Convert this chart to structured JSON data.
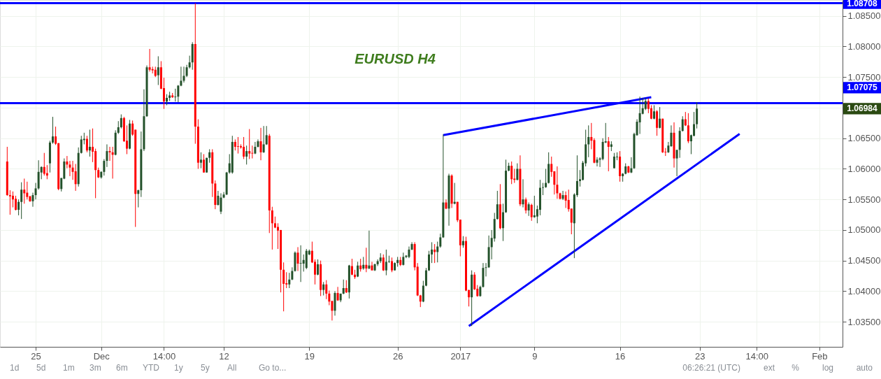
{
  "chart_data": {
    "type": "candlestick",
    "title": "EURUSD H4",
    "categories": [
      null,
      null,
      null,
      null,
      null,
      null,
      null,
      null,
      null,
      null,
      null,
      "25",
      null,
      null,
      null,
      null,
      null,
      null,
      null,
      null,
      null,
      null,
      null,
      null,
      null,
      null,
      null,
      null,
      null,
      null,
      null,
      null,
      null,
      null,
      "Dec",
      null,
      null,
      null,
      null,
      null,
      null,
      null,
      null,
      null,
      null,
      null,
      null,
      null,
      null,
      null,
      null,
      null,
      null,
      null,
      null,
      null,
      "14:00",
      null,
      null,
      null,
      null,
      null,
      null,
      null,
      null,
      null,
      null,
      null,
      null,
      null,
      null,
      null,
      null,
      null,
      null,
      null,
      null,
      "12",
      null,
      null,
      null,
      null,
      null,
      null,
      null,
      null,
      null,
      null,
      null,
      null,
      null,
      null,
      null,
      null,
      null,
      null,
      null,
      null,
      null,
      null,
      null,
      null,
      null,
      null,
      null,
      null,
      null,
      "19",
      null,
      null,
      null,
      null,
      null,
      null,
      null,
      null,
      null,
      null,
      null,
      null,
      null,
      null,
      null,
      null,
      null,
      null,
      null,
      null,
      null,
      null,
      null,
      null,
      null,
      null,
      null,
      null,
      null,
      null,
      "26",
      null,
      null,
      null,
      null,
      null,
      null,
      null,
      null,
      null,
      null,
      null,
      null,
      null,
      null,
      null,
      null,
      null,
      null,
      null,
      null,
      null,
      "2017",
      null,
      null,
      null,
      null,
      null,
      null,
      null,
      null,
      null,
      null,
      null,
      null,
      null,
      null,
      null,
      null,
      null,
      null,
      null,
      null,
      null,
      null,
      null,
      null,
      null,
      "9",
      null,
      null,
      null,
      null,
      null,
      null,
      null,
      null,
      null,
      null,
      null,
      null,
      null,
      null,
      null,
      null,
      null,
      null,
      null,
      null,
      null,
      null,
      null,
      null,
      null,
      null,
      null,
      null,
      null,
      "16",
      null,
      null,
      null,
      null,
      null,
      null,
      null,
      null,
      null,
      null,
      null,
      null,
      null,
      null,
      null,
      null,
      null,
      null,
      null,
      null,
      null,
      null,
      null,
      null,
      null,
      null,
      null,
      "23",
      null,
      null,
      null,
      null,
      null,
      null,
      null,
      null,
      null,
      null,
      null,
      null,
      null,
      null,
      null,
      null,
      null,
      null,
      null,
      "14:00",
      null,
      null,
      null,
      null,
      null,
      null,
      null,
      null,
      null,
      null,
      null,
      null,
      null,
      null,
      null,
      null,
      null,
      null,
      null,
      null,
      null,
      "Feb",
      null,
      null,
      null,
      null,
      null,
      null
    ],
    "ylim": [
      1.0309,
      1.0876
    ],
    "yticks": [
      {
        "value": 1.035,
        "label": "1.03500"
      },
      {
        "value": 1.04,
        "label": "1.04000"
      },
      {
        "value": 1.045,
        "label": "1.04500"
      },
      {
        "value": 1.05,
        "label": "1.05000"
      },
      {
        "value": 1.055,
        "label": "1.05500"
      },
      {
        "value": 1.06,
        "label": "1.06000"
      },
      {
        "value": 1.065,
        "label": "1.06500"
      },
      {
        "value": 1.07,
        "label": null
      },
      {
        "value": 1.075,
        "label": "1.07500"
      },
      {
        "value": 1.08,
        "label": "1.08000"
      },
      {
        "value": 1.085,
        "label": "1.08500"
      }
    ],
    "grid": true,
    "ref_lines": [
      {
        "axis": "y",
        "value": 1.08708,
        "label": "1.08708",
        "color": "#0000ff"
      },
      {
        "axis": "y",
        "value": 1.07075,
        "label": "1.07075",
        "color": "#0000ff"
      }
    ],
    "annotations": [
      "1.06984",
      "1d",
      "5d",
      "1m",
      "3m",
      "6m",
      "YTD",
      "1y",
      "5y",
      "All",
      "Go to...",
      "06:26:21 (UTC)",
      "ext",
      "%",
      "log",
      "auto"
    ],
    "series": [
      {
        "type": "line",
        "color": "#0000ff",
        "values": [
          null,
          null,
          null,
          null,
          null,
          null,
          null,
          null,
          null,
          null,
          null,
          null,
          null,
          null,
          null,
          null,
          null,
          null,
          null,
          null,
          null,
          null,
          null,
          null,
          null,
          null,
          null,
          null,
          null,
          null,
          null,
          null,
          null,
          null,
          null,
          null,
          null,
          null,
          null,
          null,
          null,
          null,
          null,
          null,
          null,
          null,
          null,
          null,
          null,
          null,
          null,
          null,
          null,
          null,
          null,
          null,
          null,
          null,
          null,
          null,
          null,
          null,
          null,
          null,
          null,
          null,
          null,
          null,
          null,
          null,
          null,
          null,
          null,
          null,
          null,
          null,
          null,
          null,
          null,
          null,
          null,
          null,
          null,
          null,
          null,
          null,
          null,
          null,
          null,
          null,
          null,
          null,
          null,
          null,
          null,
          null,
          null,
          null,
          null,
          null,
          null,
          null,
          null,
          null,
          null,
          null,
          null,
          null,
          null,
          null,
          null,
          null,
          null,
          null,
          null,
          null,
          null,
          null,
          null,
          null,
          null,
          null,
          null,
          null,
          null,
          null,
          null,
          null,
          null,
          null,
          null,
          null,
          null,
          null,
          null,
          null,
          null,
          null,
          null,
          null,
          null,
          null,
          null,
          null,
          null,
          null,
          null,
          null,
          null,
          null,
          null,
          null,
          null,
          null,
          1.0655,
          null,
          null,
          null,
          null,
          null,
          null,
          null,
          null,
          null,
          null,
          null,
          null,
          null,
          null,
          null,
          null,
          null,
          null,
          null,
          null,
          null,
          null,
          null,
          null,
          null,
          null,
          null,
          null,
          null,
          null,
          null,
          null,
          null,
          null,
          null,
          null,
          null,
          null,
          null,
          null,
          null,
          null,
          null,
          null,
          null,
          null,
          null,
          null,
          null,
          null,
          null,
          null,
          null,
          null,
          null,
          null,
          null,
          null,
          null,
          null,
          null,
          null,
          null,
          null,
          null,
          null,
          null,
          null,
          null,
          null,
          null,
          null,
          1.0717,
          null,
          null,
          null,
          null,
          null,
          null,
          null,
          null,
          null,
          null,
          null,
          null,
          null,
          null,
          null,
          null,
          null,
          null,
          null,
          null,
          null,
          null,
          null,
          null,
          null,
          null,
          null,
          null,
          null,
          null,
          null,
          null,
          null,
          null,
          null,
          null,
          null,
          null,
          null,
          null,
          null,
          null,
          null,
          null,
          null,
          null,
          null,
          null,
          null,
          null,
          null,
          null,
          null,
          null,
          null,
          null,
          null,
          null,
          null,
          null,
          null,
          null,
          null,
          null,
          null
        ]
      },
      {
        "type": "line",
        "color": "#0000ff",
        "values": [
          null,
          null,
          null,
          null,
          null,
          null,
          null,
          null,
          null,
          null,
          null,
          null,
          null,
          null,
          null,
          null,
          null,
          null,
          null,
          null,
          null,
          null,
          null,
          null,
          null,
          null,
          null,
          null,
          null,
          null,
          null,
          null,
          null,
          null,
          null,
          null,
          null,
          null,
          null,
          null,
          null,
          null,
          null,
          null,
          null,
          null,
          null,
          null,
          null,
          null,
          null,
          null,
          null,
          null,
          null,
          null,
          null,
          null,
          null,
          null,
          null,
          null,
          null,
          null,
          null,
          null,
          null,
          null,
          null,
          null,
          null,
          null,
          null,
          null,
          null,
          null,
          null,
          null,
          null,
          null,
          null,
          null,
          null,
          null,
          null,
          null,
          null,
          null,
          null,
          null,
          null,
          null,
          null,
          null,
          null,
          null,
          null,
          null,
          null,
          null,
          null,
          null,
          null,
          null,
          null,
          null,
          null,
          null,
          null,
          null,
          null,
          null,
          null,
          null,
          null,
          null,
          null,
          null,
          null,
          null,
          null,
          null,
          null,
          null,
          null,
          null,
          null,
          null,
          null,
          null,
          null,
          null,
          null,
          null,
          null,
          null,
          null,
          null,
          null,
          null,
          null,
          null,
          null,
          null,
          null,
          null,
          null,
          null,
          null,
          null,
          null,
          null,
          null,
          null,
          null,
          null,
          null,
          null,
          null,
          null,
          null,
          null,
          null,
          1.0343,
          null,
          null,
          null,
          null,
          null,
          null,
          null,
          null,
          null,
          null,
          null,
          null,
          null,
          null,
          null,
          null,
          null,
          null,
          null,
          null,
          null,
          null,
          null,
          null,
          null,
          null,
          null,
          null,
          null,
          null,
          null,
          null,
          null,
          null,
          null,
          null,
          null,
          null,
          null,
          null,
          null,
          null,
          null,
          null,
          null,
          null,
          null,
          null,
          null,
          null,
          null,
          null,
          null,
          null,
          null,
          null,
          null,
          null,
          null,
          null,
          null,
          null,
          null,
          null,
          null,
          null,
          null,
          null,
          null,
          null,
          null,
          null,
          null,
          null,
          null,
          null,
          null,
          null,
          null,
          null,
          null,
          null,
          null,
          null,
          null,
          null,
          null,
          null,
          null,
          null,
          null,
          null,
          null,
          null,
          1.0657,
          null,
          null,
          null,
          null,
          null,
          null,
          null,
          null,
          null,
          null,
          null,
          null,
          null,
          null,
          null,
          null,
          null,
          null,
          null,
          null,
          null,
          null,
          null,
          null,
          null,
          null,
          null,
          null,
          null,
          null,
          null,
          null,
          null,
          null
        ]
      }
    ],
    "ohlc": [
      null,
      [
        1.0612,
        1.0636,
        1.0556,
        1.0557
      ],
      [
        1.0557,
        1.0565,
        1.0525,
        1.0555
      ],
      [
        1.0556,
        1.0563,
        1.0537,
        1.055
      ],
      [
        1.0551,
        1.0556,
        1.0532,
        1.0533
      ],
      [
        1.0533,
        1.055,
        1.0524,
        1.0546
      ],
      [
        1.0546,
        1.0578,
        1.0518,
        1.0566
      ],
      [
        1.0566,
        1.0584,
        1.0543,
        1.056
      ],
      [
        1.0561,
        1.0579,
        1.055,
        1.0554
      ],
      [
        1.0555,
        1.0556,
        1.0546,
        1.0547
      ],
      [
        1.0547,
        1.0561,
        1.0538,
        1.0557
      ],
      [
        1.0557,
        1.0577,
        1.055,
        1.0568
      ],
      [
        1.0568,
        1.0614,
        1.0566,
        1.0595
      ],
      [
        1.0594,
        1.0604,
        1.0583,
        1.0603
      ],
      [
        1.0603,
        1.0626,
        1.0589,
        1.0592
      ],
      [
        1.0593,
        1.0606,
        1.0583,
        1.0589
      ],
      [
        1.0609,
        1.0646,
        1.0594,
        1.0643
      ],
      [
        1.0643,
        1.0685,
        1.0641,
        1.0653
      ],
      [
        1.0653,
        1.0669,
        1.0639,
        1.0641
      ],
      [
        1.0642,
        1.0642,
        1.0565,
        1.0567
      ],
      [
        1.0567,
        1.0585,
        1.0563,
        1.0585
      ],
      [
        1.0584,
        1.0617,
        1.0583,
        1.0612
      ],
      [
        1.0612,
        1.0621,
        1.0601,
        1.0607
      ],
      [
        1.0607,
        1.0613,
        1.0588,
        1.0602
      ],
      [
        1.0602,
        1.0613,
        1.0582,
        1.0595
      ],
      [
        1.0596,
        1.0608,
        1.0564,
        1.0575
      ],
      [
        1.0575,
        1.0635,
        1.0571,
        1.0626
      ],
      [
        1.0626,
        1.0654,
        1.0625,
        1.0648
      ],
      [
        1.0647,
        1.0659,
        1.064,
        1.0649
      ],
      [
        1.0649,
        1.0654,
        1.0627,
        1.063
      ],
      [
        1.063,
        1.0664,
        1.062,
        1.0636
      ],
      [
        1.0636,
        1.0666,
        1.0611,
        1.0628
      ],
      [
        1.0629,
        1.0633,
        1.0552,
        1.0598
      ],
      [
        1.0598,
        1.0602,
        1.0585,
        1.0586
      ],
      [
        1.0586,
        1.0596,
        1.0584,
        1.0595
      ],
      [
        1.0595,
        1.0616,
        1.0589,
        1.0613
      ],
      [
        1.0613,
        1.064,
        1.0603,
        1.0629
      ],
      [
        1.0629,
        1.0636,
        1.0613,
        1.0627
      ],
      [
        1.0627,
        1.0636,
        1.0584,
        1.0623
      ],
      [
        1.0623,
        1.0663,
        1.0622,
        1.0659
      ],
      [
        1.0659,
        1.0678,
        1.0657,
        1.0668
      ],
      [
        1.0668,
        1.0689,
        1.0666,
        1.0683
      ],
      [
        1.0683,
        1.0685,
        1.0644,
        1.0645
      ],
      [
        1.0646,
        1.0671,
        1.0624,
        1.0633
      ],
      [
        1.0633,
        1.068,
        1.0632,
        1.0674
      ],
      [
        1.0674,
        1.0679,
        1.0654,
        1.0656
      ],
      [
        1.0664,
        1.0664,
        1.0505,
        1.0559
      ],
      [
        1.0559,
        1.0566,
        1.0537,
        1.0565
      ],
      [
        1.0565,
        1.0661,
        1.0554,
        1.0632
      ],
      [
        1.0632,
        1.073,
        1.0629,
        1.0686
      ],
      [
        1.0686,
        1.0769,
        1.0685,
        1.0766
      ],
      [
        1.0766,
        1.0796,
        1.0759,
        1.0762
      ],
      [
        1.0763,
        1.0767,
        1.0756,
        1.0761
      ],
      [
        1.0762,
        1.0767,
        1.075,
        1.0752
      ],
      [
        1.0753,
        1.0784,
        1.0737,
        1.0766
      ],
      [
        1.0766,
        1.0776,
        1.073,
        1.0731
      ],
      [
        1.0732,
        1.0749,
        1.0698,
        1.071
      ],
      [
        1.071,
        1.0722,
        1.0704,
        1.0716
      ],
      [
        1.0716,
        1.0726,
        1.0711,
        1.072
      ],
      [
        1.072,
        1.0724,
        1.0716,
        1.0717
      ],
      [
        1.0717,
        1.0731,
        1.071,
        1.0718
      ],
      [
        1.0718,
        1.0737,
        1.0709,
        1.0736
      ],
      [
        1.0736,
        1.0767,
        1.0735,
        1.0744
      ],
      [
        1.0744,
        1.0767,
        1.0741,
        1.0752
      ],
      [
        1.0752,
        1.077,
        1.075,
        1.0766
      ],
      [
        1.0766,
        1.0785,
        1.0764,
        1.0774
      ],
      [
        1.0774,
        1.0807,
        1.0762,
        1.0804
      ],
      [
        1.0804,
        1.08708,
        1.0641,
        1.0669
      ],
      [
        1.0669,
        1.0681,
        1.06,
        1.061
      ],
      [
        1.061,
        1.0627,
        1.0601,
        1.0615
      ],
      [
        1.0615,
        1.0624,
        1.0594,
        1.0594
      ],
      [
        1.0594,
        1.0618,
        1.0594,
        1.0618
      ],
      [
        1.0618,
        1.0632,
        1.061,
        1.0627
      ],
      [
        1.0627,
        1.0632,
        1.0554,
        1.0576
      ],
      [
        1.0576,
        1.0581,
        1.0534,
        1.0541
      ],
      [
        1.0541,
        1.0564,
        1.054,
        1.0556
      ],
      [
        1.053,
        1.056,
        1.0526,
        1.0553
      ],
      [
        1.0553,
        1.0562,
        1.0552,
        1.0558
      ],
      [
        1.0558,
        1.0595,
        1.0557,
        1.0594
      ],
      [
        1.0594,
        1.0624,
        1.0592,
        1.0609
      ],
      [
        1.0594,
        1.0654,
        1.0592,
        1.0644
      ],
      [
        1.0644,
        1.0648,
        1.063,
        1.0636
      ],
      [
        1.0637,
        1.0652,
        1.0625,
        1.0636
      ],
      [
        1.0637,
        1.064,
        1.0633,
        1.0635
      ],
      [
        1.0636,
        1.0652,
        1.0616,
        1.062
      ],
      [
        1.062,
        1.0638,
        1.0607,
        1.0629
      ],
      [
        1.0629,
        1.0665,
        1.0616,
        1.0625
      ],
      [
        1.0626,
        1.0638,
        1.0617,
        1.0625
      ],
      [
        1.0625,
        1.0644,
        1.0624,
        1.0636
      ],
      [
        1.0636,
        1.0648,
        1.0635,
        1.0645
      ],
      [
        1.0645,
        1.0667,
        1.0614,
        1.0627
      ],
      [
        1.0627,
        1.067,
        1.0626,
        1.064
      ],
      [
        1.064,
        1.067,
        1.0639,
        1.0655
      ],
      [
        1.0654,
        1.0657,
        1.0495,
        1.0532
      ],
      [
        1.0532,
        1.0538,
        1.0468,
        1.0511
      ],
      [
        1.0511,
        1.0522,
        1.0503,
        1.0504
      ],
      [
        1.0505,
        1.0511,
        1.0469,
        1.0499
      ],
      [
        1.05,
        1.05,
        1.0398,
        1.0435
      ],
      [
        1.0435,
        1.0447,
        1.0367,
        1.0412
      ],
      [
        1.0413,
        1.0431,
        1.0405,
        1.0411
      ],
      [
        1.0411,
        1.043,
        1.0405,
        1.0419
      ],
      [
        1.0419,
        1.0439,
        1.0418,
        1.0433
      ],
      [
        1.0433,
        1.0465,
        1.0432,
        1.0463
      ],
      [
        1.0463,
        1.0472,
        1.0433,
        1.0445
      ],
      [
        1.0445,
        1.0475,
        1.0415,
        1.0446
      ],
      [
        1.0445,
        1.046,
        1.0432,
        1.0451
      ],
      [
        1.0438,
        1.0469,
        1.0436,
        1.0466
      ],
      [
        1.046,
        1.0468,
        1.0459,
        1.0466
      ],
      [
        1.0466,
        1.0481,
        1.0446,
        1.0447
      ],
      [
        1.0448,
        1.0452,
        1.0411,
        1.0427
      ],
      [
        1.0427,
        1.0452,
        1.0426,
        1.0444
      ],
      [
        1.0444,
        1.045,
        1.0392,
        1.0402
      ],
      [
        1.0402,
        1.0415,
        1.0393,
        1.0411
      ],
      [
        1.0411,
        1.0418,
        1.0387,
        1.0396
      ],
      [
        1.0396,
        1.0401,
        1.0377,
        1.0383
      ],
      [
        1.0384,
        1.0384,
        1.0352,
        1.0368
      ],
      [
        1.0368,
        1.04,
        1.036,
        1.0397
      ],
      [
        1.0397,
        1.0407,
        1.0384,
        1.0385
      ],
      [
        1.0385,
        1.0396,
        1.0382,
        1.0396
      ],
      [
        1.0396,
        1.0419,
        1.0395,
        1.0405
      ],
      [
        1.0405,
        1.0418,
        1.0397,
        1.0398
      ],
      [
        1.0398,
        1.0443,
        1.0388,
        1.0442
      ],
      [
        1.0441,
        1.0453,
        1.0426,
        1.0427
      ],
      [
        1.0427,
        1.0435,
        1.042,
        1.0423
      ],
      [
        1.0424,
        1.0448,
        1.0423,
        1.0442
      ],
      [
        1.0442,
        1.0453,
        1.0432,
        1.0436
      ],
      [
        1.0437,
        1.0456,
        1.0435,
        1.0443
      ],
      [
        1.0443,
        1.0471,
        1.0431,
        1.0437
      ],
      [
        1.0437,
        1.0499,
        1.0436,
        1.0442
      ],
      [
        1.0442,
        1.0448,
        1.0434,
        1.0434
      ],
      [
        1.0434,
        1.0445,
        1.0433,
        1.0444
      ],
      [
        1.0444,
        1.0452,
        1.0441,
        1.0449
      ],
      [
        1.0449,
        1.0462,
        1.0446,
        1.0455
      ],
      [
        1.0455,
        1.046,
        1.0433,
        1.0434
      ],
      [
        1.0434,
        1.0468,
        1.0426,
        1.0448
      ],
      [
        1.0448,
        1.0458,
        1.0446,
        1.0449
      ],
      [
        1.0449,
        1.0455,
        1.0431,
        1.0434
      ],
      [
        1.0434,
        1.0447,
        1.0434,
        1.0446
      ],
      [
        1.0446,
        1.0456,
        1.044,
        1.0451
      ],
      [
        1.0451,
        1.0456,
        1.0441,
        1.0443
      ],
      [
        1.0443,
        1.0463,
        1.0442,
        1.0456
      ],
      [
        1.0456,
        1.0459,
        1.0454,
        1.0458
      ],
      [
        1.0456,
        1.0473,
        1.0454,
        1.0468
      ],
      [
        1.0468,
        1.048,
        1.0467,
        1.0477
      ],
      [
        1.0477,
        1.048,
        1.0434,
        1.0439
      ],
      [
        1.044,
        1.0446,
        1.0392,
        1.0393
      ],
      [
        1.0393,
        1.0394,
        1.0374,
        1.0383
      ],
      [
        1.0383,
        1.0417,
        1.0382,
        1.0409
      ],
      [
        1.0409,
        1.0438,
        1.0408,
        1.0434
      ],
      [
        1.0434,
        1.0466,
        1.0433,
        1.046
      ],
      [
        1.046,
        1.048,
        1.0446,
        1.0468
      ],
      [
        1.0468,
        1.0477,
        1.0446,
        1.0464
      ],
      [
        1.0464,
        1.0481,
        1.0447,
        1.0473
      ],
      [
        1.0473,
        1.0494,
        1.0471,
        1.0488
      ],
      [
        1.0488,
        1.0656,
        1.0487,
        1.0545
      ],
      [
        1.0545,
        1.055,
        1.0534,
        1.0535
      ],
      [
        1.0535,
        1.0592,
        1.0507,
        1.0589
      ],
      [
        1.0589,
        1.0591,
        1.0536,
        1.0543
      ],
      [
        1.0543,
        1.0577,
        1.0542,
        1.0546
      ],
      [
        1.0546,
        1.0546,
        1.0513,
        1.0516
      ],
      [
        1.0517,
        1.0517,
        1.0457,
        1.0475
      ],
      [
        1.0475,
        1.049,
        1.0471,
        1.0482
      ],
      [
        1.0482,
        1.0489,
        1.04,
        1.0401
      ],
      [
        1.0402,
        1.0402,
        1.0375,
        1.039
      ],
      [
        1.039,
        1.0434,
        1.0343,
        1.0427
      ],
      [
        1.0427,
        1.0431,
        1.0402,
        1.0403
      ],
      [
        1.0404,
        1.041,
        1.0391,
        1.0392
      ],
      [
        1.0392,
        1.0409,
        1.0391,
        1.0407
      ],
      [
        1.0407,
        1.0446,
        1.0406,
        1.0438
      ],
      [
        1.0438,
        1.0446,
        1.0424,
        1.0439
      ],
      [
        1.0439,
        1.0491,
        1.0438,
        1.0472
      ],
      [
        1.0472,
        1.05,
        1.0452,
        1.0487
      ],
      [
        1.0486,
        1.0528,
        1.0481,
        1.0518
      ],
      [
        1.0518,
        1.0564,
        1.0517,
        1.0542
      ],
      [
        1.0542,
        1.0575,
        1.0501,
        1.0503
      ],
      [
        1.0503,
        1.0543,
        1.0482,
        1.0529
      ],
      [
        1.0529,
        1.0615,
        1.0528,
        1.0597
      ],
      [
        1.0597,
        1.061,
        1.0596,
        1.0605
      ],
      [
        1.0605,
        1.0612,
        1.0575,
        1.0583
      ],
      [
        1.0584,
        1.06,
        1.0577,
        1.0582
      ],
      [
        1.0582,
        1.0609,
        1.0581,
        1.06
      ],
      [
        1.06,
        1.0622,
        1.0539,
        1.0542
      ],
      [
        1.0542,
        1.0583,
        1.0537,
        1.055
      ],
      [
        1.055,
        1.0553,
        1.0527,
        1.0532
      ],
      [
        1.0532,
        1.0545,
        1.0523,
        1.0542
      ],
      [
        1.0541,
        1.0543,
        1.0515,
        1.0521
      ],
      [
        1.0521,
        1.0556,
        1.052,
        1.0524
      ],
      [
        1.0522,
        1.054,
        1.0511,
        1.0534
      ],
      [
        1.0533,
        1.0582,
        1.0524,
        1.0569
      ],
      [
        1.0569,
        1.0577,
        1.0557,
        1.057
      ],
      [
        1.057,
        1.06,
        1.0569,
        1.0577
      ],
      [
        1.0577,
        1.0627,
        1.0576,
        1.0608
      ],
      [
        1.0608,
        1.062,
        1.0587,
        1.0595
      ],
      [
        1.0596,
        1.0596,
        1.0558,
        1.0574
      ],
      [
        1.0574,
        1.0604,
        1.0551,
        1.056
      ],
      [
        1.056,
        1.0561,
        1.055,
        1.0551
      ],
      [
        1.0551,
        1.0564,
        1.0549,
        1.0557
      ],
      [
        1.0557,
        1.0563,
        1.0536,
        1.0548
      ],
      [
        1.0549,
        1.0566,
        1.053,
        1.0534
      ],
      [
        1.0535,
        1.0535,
        1.0493,
        1.0512
      ],
      [
        1.0511,
        1.056,
        1.0454,
        1.0558
      ],
      [
        1.0557,
        1.0622,
        1.0554,
        1.058
      ],
      [
        1.058,
        1.0598,
        1.0571,
        1.0583
      ],
      [
        1.0582,
        1.0613,
        1.0581,
        1.061
      ],
      [
        1.0609,
        1.0664,
        1.0604,
        1.064
      ],
      [
        1.064,
        1.0671,
        1.0619,
        1.0652
      ],
      [
        1.0652,
        1.0675,
        1.0632,
        1.0646
      ],
      [
        1.0647,
        1.065,
        1.0609,
        1.061
      ],
      [
        1.061,
        1.0619,
        1.0604,
        1.0615
      ],
      [
        1.0615,
        1.0619,
        1.0603,
        1.0617
      ],
      [
        1.0616,
        1.065,
        1.0614,
        1.0644
      ],
      [
        1.0643,
        1.0675,
        1.0642,
        1.0645
      ],
      [
        1.0645,
        1.0652,
        1.0596,
        1.0636
      ],
      [
        1.0636,
        1.0645,
        1.0629,
        1.064
      ],
      [
        1.0601,
        1.0626,
        1.0601,
        1.062
      ],
      [
        1.0619,
        1.0627,
        1.0614,
        1.062
      ],
      [
        1.062,
        1.0629,
        1.0579,
        1.0588
      ],
      [
        1.0588,
        1.0593,
        1.0579,
        1.0592
      ],
      [
        1.0592,
        1.0609,
        1.0591,
        1.0604
      ],
      [
        1.0604,
        1.0605,
        1.0593,
        1.0594
      ],
      [
        1.0594,
        1.0619,
        1.0593,
        1.0601
      ],
      [
        1.0601,
        1.0659,
        1.06,
        1.0657
      ],
      [
        1.0655,
        1.0681,
        1.0654,
        1.0677
      ],
      [
        1.0676,
        1.0718,
        1.0657,
        1.0691
      ],
      [
        1.069,
        1.0716,
        1.0689,
        1.0699
      ],
      [
        1.0698,
        1.0716,
        1.0696,
        1.0711
      ],
      [
        1.0711,
        1.0715,
        1.0691,
        1.0698
      ],
      [
        1.0699,
        1.0704,
        1.0681,
        1.0682
      ],
      [
        1.0682,
        1.0704,
        1.0681,
        1.0694
      ],
      [
        1.0694,
        1.0696,
        1.0654,
        1.0667
      ],
      [
        1.0667,
        1.0701,
        1.0666,
        1.0682
      ],
      [
        1.0682,
        1.0682,
        1.0626,
        1.0627
      ],
      [
        1.0628,
        1.0634,
        1.0621,
        1.0627
      ],
      [
        1.0627,
        1.0644,
        1.0626,
        1.0638
      ],
      [
        1.0637,
        1.0671,
        1.0636,
        1.0659
      ],
      [
        1.0659,
        1.0676,
        1.0602,
        1.0617
      ],
      [
        1.0617,
        1.0631,
        1.0588,
        1.0631
      ],
      [
        1.0631,
        1.0668,
        1.0618,
        1.0662
      ],
      [
        1.0662,
        1.0686,
        1.0661,
        1.0681
      ],
      [
        1.0681,
        1.0693,
        1.067,
        1.0671
      ],
      [
        1.0671,
        1.0691,
        1.0642,
        1.0645
      ],
      [
        1.0645,
        1.0656,
        1.0624,
        1.0655
      ],
      [
        1.0654,
        1.0693,
        1.0653,
        1.0673
      ],
      [
        1.0673,
        1.0709,
        1.0666,
        1.06984
      ],
      null,
      null,
      null,
      null,
      null,
      null,
      null,
      null,
      null,
      null,
      null,
      null,
      null,
      null,
      null,
      null,
      null,
      null,
      null,
      null,
      null,
      null,
      null,
      null,
      null,
      null,
      null,
      null,
      null,
      null,
      null,
      null,
      null,
      null,
      null,
      null,
      null,
      null,
      null,
      null,
      null,
      null,
      null,
      null,
      null,
      null,
      null,
      null,
      null
    ]
  }
}
